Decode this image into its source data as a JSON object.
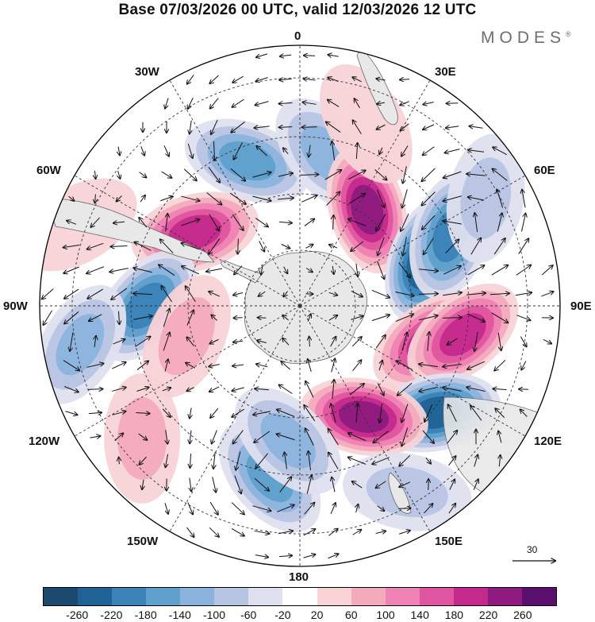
{
  "title": "Base 07/03/2026 00 UTC, valid 12/03/2026 12 UTC",
  "brand": "MODES",
  "brand_mark": "®",
  "longitude_labels": {
    "lon_0": "0",
    "lon_30e": "30E",
    "lon_60e": "60E",
    "lon_90e": "90E",
    "lon_120e": "120E",
    "lon_150e": "150E",
    "lon_180": "180",
    "lon_150w": "150W",
    "lon_120w": "120W",
    "lon_90w": "90W",
    "lon_60w": "60W",
    "lon_30w": "30W"
  },
  "wind_reference_vector": "30",
  "colorbar": {
    "colors": [
      "#1c4a6e",
      "#1f6296",
      "#3b83b9",
      "#5fa0cc",
      "#8ab4dd",
      "#b7c4e2",
      "#dfe0ef",
      "#ffffff",
      "#f8d3d6",
      "#f3aabd",
      "#ee82b4",
      "#e0559f",
      "#c42a8c",
      "#8f1a80",
      "#5a0e6e"
    ],
    "tick_labels": [
      "-260",
      "-220",
      "-180",
      "-140",
      "-100",
      "-60",
      "-20",
      "20",
      "60",
      "100",
      "140",
      "180",
      "220",
      "260"
    ]
  },
  "colors": {
    "land": "#e8e8e8",
    "coast": "#666666",
    "grid": "#333333"
  },
  "anomaly_centers": [
    {
      "lat": -45,
      "lon": -20,
      "value": -150
    },
    {
      "lat": -45,
      "lon": 10,
      "value": -130
    },
    {
      "lat": -52,
      "lon": -55,
      "value": 200
    },
    {
      "lat": -55,
      "lon": 35,
      "value": 220
    },
    {
      "lat": -50,
      "lon": 70,
      "value": -260
    },
    {
      "lat": -42,
      "lon": 65,
      "value": -180
    },
    {
      "lat": -50,
      "lon": 105,
      "value": 210
    },
    {
      "lat": -42,
      "lon": 100,
      "value": 180
    },
    {
      "lat": -40,
      "lon": 128,
      "value": -220
    },
    {
      "lat": -52,
      "lon": 150,
      "value": 220
    },
    {
      "lat": -45,
      "lon": -90,
      "value": -200
    },
    {
      "lat": -28,
      "lon": -100,
      "value": -110
    },
    {
      "lat": -40,
      "lon": -170,
      "value": -140
    },
    {
      "lat": -50,
      "lon": -175,
      "value": -110
    },
    {
      "lat": -55,
      "lon": -105,
      "value": 80
    },
    {
      "lat": -32,
      "lon": -130,
      "value": 60
    },
    {
      "lat": -35,
      "lon": 20,
      "value": 40
    },
    {
      "lat": -25,
      "lon": -70,
      "value": 50
    },
    {
      "lat": -30,
      "lon": 150,
      "value": -60
    },
    {
      "lat": -30,
      "lon": 60,
      "value": -70
    }
  ]
}
